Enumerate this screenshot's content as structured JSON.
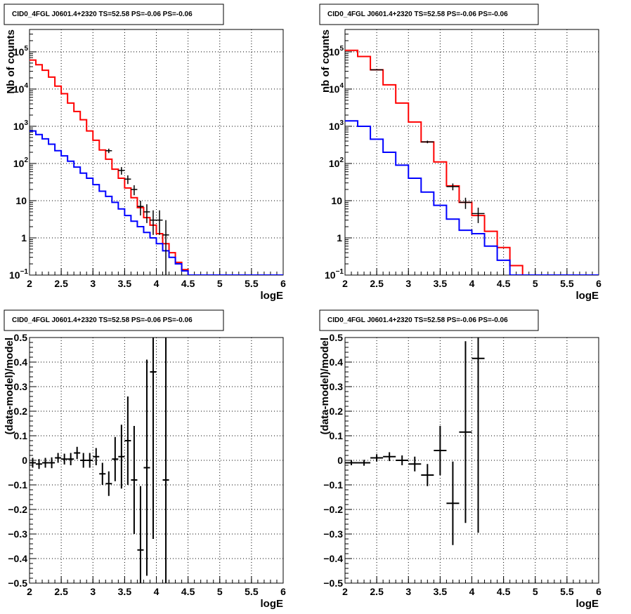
{
  "chart_data": [
    {
      "type": "line",
      "title": "CID0_4FGL J0601.4+2320 TS=52.58 PS=-0.06 PS=-0.06",
      "xlabel": "logE",
      "ylabel": "Nb of counts",
      "yscale": "log",
      "xlim": [
        2,
        6
      ],
      "ylim": [
        0.1,
        400000
      ],
      "grid": true,
      "x_ticks": [
        "2",
        "2.5",
        "3",
        "3.5",
        "4",
        "4.5",
        "5",
        "5.5",
        "6"
      ],
      "y_ticks": [
        {
          "value": 0.1,
          "base": "10",
          "exp": "−1"
        },
        {
          "value": 1,
          "text": "1"
        },
        {
          "value": 10,
          "text": "10"
        },
        {
          "value": 100,
          "base": "10",
          "exp": "2"
        },
        {
          "value": 1000,
          "base": "10",
          "exp": "3"
        },
        {
          "value": 10000,
          "base": "10",
          "exp": "4"
        },
        {
          "value": 100000,
          "base": "10",
          "exp": "5"
        }
      ],
      "bin_edges": [
        2.0,
        2.1,
        2.2,
        2.3,
        2.4,
        2.5,
        2.6,
        2.7,
        2.8,
        2.9,
        3.0,
        3.1,
        3.2,
        3.3,
        3.4,
        3.5,
        3.6,
        3.7,
        3.8,
        3.9,
        4.0,
        4.1,
        4.2,
        4.3,
        4.4,
        4.5,
        4.6,
        4.7,
        4.8,
        4.9,
        5.0,
        5.1,
        5.2,
        5.3,
        5.4,
        5.5,
        5.6,
        5.7,
        5.8,
        5.9,
        6.0
      ],
      "series": [
        {
          "color": "#ff0000",
          "values": [
            60000,
            45000,
            32000,
            21000,
            12000,
            7500,
            4200,
            2500,
            1500,
            750,
            420,
            230,
            130,
            70,
            40,
            22,
            12,
            6.5,
            3.5,
            2.2,
            1.3,
            0.7,
            0.4,
            0.22,
            0.14,
            0.1,
            0.1,
            0.1,
            0.1,
            0.1,
            0.1,
            0.1,
            0.1,
            0.1,
            0.1,
            0.1,
            0.1,
            0.1,
            0.1,
            0.1
          ]
        },
        {
          "color": "#0000ff",
          "values": [
            750,
            600,
            460,
            330,
            220,
            160,
            115,
            80,
            55,
            40,
            27,
            18,
            13,
            9,
            6,
            4,
            2.8,
            2,
            1.4,
            1,
            0.7,
            0.45,
            0.3,
            0.2,
            0.13,
            0.1,
            0.1,
            0.1,
            0.1,
            0.1,
            0.1,
            0.1,
            0.1,
            0.1,
            0.1,
            0.1,
            0.1,
            0.1,
            0.1,
            0.1
          ]
        }
      ],
      "data_points": [
        {
          "x": 3.25,
          "y": 220,
          "ylo": 190,
          "yhi": 250
        },
        {
          "x": 3.45,
          "y": 65,
          "ylo": 50,
          "yhi": 80
        },
        {
          "x": 3.55,
          "y": 38,
          "ylo": 28,
          "yhi": 48
        },
        {
          "x": 3.65,
          "y": 20,
          "ylo": 14,
          "yhi": 26
        },
        {
          "x": 3.75,
          "y": 7,
          "ylo": 4,
          "yhi": 10
        },
        {
          "x": 3.85,
          "y": 5,
          "ylo": 2.5,
          "yhi": 8
        },
        {
          "x": 3.95,
          "y": 3,
          "ylo": 1.2,
          "yhi": 5.5
        },
        {
          "x": 4.05,
          "y": 3,
          "ylo": 1.2,
          "yhi": 5.5
        },
        {
          "x": 4.15,
          "y": 1.2,
          "ylo": 0.1,
          "yhi": 3
        }
      ]
    },
    {
      "type": "line",
      "title": "CID0_4FGL J0601.4+2320 TS=52.58 PS=-0.06 PS=-0.06",
      "xlabel": "logE",
      "ylabel": "nb of counts",
      "yscale": "log",
      "xlim": [
        2,
        6
      ],
      "ylim": [
        0.1,
        400000
      ],
      "grid": true,
      "x_ticks": [
        "2",
        "2.5",
        "3",
        "3.5",
        "4",
        "4.5",
        "5",
        "5.5",
        "6"
      ],
      "y_ticks": [
        {
          "value": 0.1,
          "base": "10",
          "exp": "−1"
        },
        {
          "value": 1,
          "text": "1"
        },
        {
          "value": 10,
          "text": "10"
        },
        {
          "value": 100,
          "base": "10",
          "exp": "2"
        },
        {
          "value": 1000,
          "base": "10",
          "exp": "3"
        },
        {
          "value": 10000,
          "base": "10",
          "exp": "4"
        },
        {
          "value": 100000,
          "base": "10",
          "exp": "5"
        }
      ],
      "bin_edges": [
        2.0,
        2.2,
        2.4,
        2.6,
        2.8,
        3.0,
        3.2,
        3.4,
        3.6,
        3.8,
        4.0,
        4.2,
        4.4,
        4.6,
        4.8,
        5.0,
        5.2,
        5.4,
        5.6,
        5.8,
        6.0
      ],
      "series": [
        {
          "color": "#ff0000",
          "values": [
            110000,
            75000,
            33000,
            13000,
            4200,
            1300,
            380,
            110,
            25,
            9,
            4,
            1.5,
            0.55,
            0.18,
            0.1,
            0.1,
            0.1,
            0.1,
            0.1,
            0.1
          ]
        },
        {
          "color": "#0000ff",
          "values": [
            1400,
            1000,
            450,
            200,
            90,
            40,
            17,
            7.5,
            3.2,
            1.6,
            1.3,
            0.6,
            0.25,
            0.1,
            0.1,
            0.1,
            0.1,
            0.1,
            0.1,
            0.1
          ]
        }
      ],
      "data_points": [
        {
          "x": 2.5,
          "y": 33000,
          "ylo": 32000,
          "yhi": 34000
        },
        {
          "x": 3.3,
          "y": 380,
          "ylo": 350,
          "yhi": 410
        },
        {
          "x": 3.7,
          "y": 24,
          "ylo": 19,
          "yhi": 29
        },
        {
          "x": 3.9,
          "y": 9,
          "ylo": 6,
          "yhi": 12
        },
        {
          "x": 4.1,
          "y": 4.5,
          "ylo": 2.5,
          "yhi": 6.5
        }
      ]
    },
    {
      "type": "scatter",
      "title": "CID0_4FGL J0601.4+2320 TS=52.58 PS=-0.06 PS=-0.06",
      "xlabel": "logE",
      "ylabel": "(data-model)/model",
      "xlim": [
        2,
        6
      ],
      "ylim": [
        -0.5,
        0.5
      ],
      "grid": true,
      "x_ticks": [
        "2",
        "2.5",
        "3",
        "3.5",
        "4",
        "4.5",
        "5",
        "5.5",
        "6"
      ],
      "y_ticks": [
        "−0.5",
        "−0.4",
        "−0.3",
        "−0.2",
        "−0.1",
        "0",
        "0.1",
        "0.2",
        "0.3",
        "0.4",
        "0.5"
      ],
      "bin_width": 0.1,
      "data_points": [
        {
          "x": 2.05,
          "y": -0.01,
          "err": 0.02
        },
        {
          "x": 2.15,
          "y": -0.015,
          "err": 0.02
        },
        {
          "x": 2.25,
          "y": -0.01,
          "err": 0.02
        },
        {
          "x": 2.35,
          "y": -0.01,
          "err": 0.022
        },
        {
          "x": 2.45,
          "y": 0.01,
          "err": 0.02
        },
        {
          "x": 2.55,
          "y": 0.005,
          "err": 0.022
        },
        {
          "x": 2.65,
          "y": 0.005,
          "err": 0.025
        },
        {
          "x": 2.75,
          "y": 0.03,
          "err": 0.025
        },
        {
          "x": 2.85,
          "y": 0.0,
          "err": 0.03
        },
        {
          "x": 2.95,
          "y": 0.0,
          "err": 0.03
        },
        {
          "x": 3.05,
          "y": 0.015,
          "err": 0.035
        },
        {
          "x": 3.15,
          "y": -0.055,
          "err": 0.045
        },
        {
          "x": 3.25,
          "y": -0.095,
          "err": 0.05
        },
        {
          "x": 3.35,
          "y": 0.005,
          "err": 0.09
        },
        {
          "x": 3.45,
          "y": 0.015,
          "err": 0.13
        },
        {
          "x": 3.55,
          "y": 0.08,
          "err": 0.18
        },
        {
          "x": 3.65,
          "y": -0.08,
          "err": 0.22
        },
        {
          "x": 3.75,
          "y": -0.365,
          "err": 0.26
        },
        {
          "x": 3.85,
          "y": -0.03,
          "err": 0.44
        },
        {
          "x": 3.95,
          "y": 0.36,
          "err": 0.68
        },
        {
          "x": 4.15,
          "y": -0.08,
          "err": 0.9
        }
      ]
    },
    {
      "type": "scatter",
      "title": "CID0_4FGL J0601.4+2320 TS=52.58 PS=-0.06 PS=-0.06",
      "xlabel": "logE",
      "ylabel": "(data-model)/model",
      "xlim": [
        2,
        6
      ],
      "ylim": [
        -0.5,
        0.5
      ],
      "grid": true,
      "x_ticks": [
        "2",
        "2.5",
        "3",
        "3.5",
        "4",
        "4.5",
        "5",
        "5.5",
        "6"
      ],
      "y_ticks": [
        "−0.5",
        "−0.4",
        "−0.3",
        "−0.2",
        "−0.1",
        "0",
        "0.1",
        "0.2",
        "0.3",
        "0.4",
        "0.5"
      ],
      "bin_width": 0.2,
      "data_points": [
        {
          "x": 2.1,
          "y": -0.01,
          "err": 0.01
        },
        {
          "x": 2.3,
          "y": -0.01,
          "err": 0.012
        },
        {
          "x": 2.5,
          "y": 0.01,
          "err": 0.015
        },
        {
          "x": 2.7,
          "y": 0.015,
          "err": 0.018
        },
        {
          "x": 2.9,
          "y": 0.0,
          "err": 0.02
        },
        {
          "x": 3.1,
          "y": -0.015,
          "err": 0.03
        },
        {
          "x": 3.3,
          "y": -0.06,
          "err": 0.045
        },
        {
          "x": 3.5,
          "y": 0.04,
          "err": 0.1
        },
        {
          "x": 3.7,
          "y": -0.175,
          "err": 0.17
        },
        {
          "x": 3.9,
          "y": 0.115,
          "err": 0.37
        },
        {
          "x": 4.1,
          "y": 0.415,
          "err": 0.71
        }
      ]
    }
  ]
}
